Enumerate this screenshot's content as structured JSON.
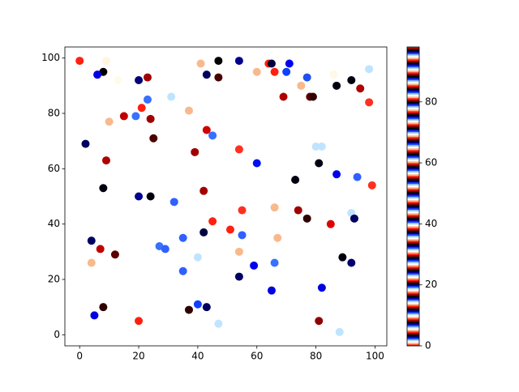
{
  "chart_data": {
    "type": "scatter",
    "xlim": [
      -5,
      104
    ],
    "ylim": [
      -4,
      104
    ],
    "xticks": [
      0,
      20,
      40,
      60,
      80,
      100
    ],
    "yticks": [
      0,
      20,
      40,
      60,
      80,
      100
    ],
    "series": [
      {
        "x": [
          0,
          9,
          8,
          6,
          13,
          20,
          23,
          41,
          43,
          47,
          47,
          54,
          60,
          64,
          65,
          66,
          71,
          70,
          75,
          77,
          78,
          79,
          69,
          87,
          86,
          92,
          95,
          98,
          98,
          31,
          37,
          19,
          21,
          23,
          24,
          15,
          10,
          25,
          2,
          9,
          43,
          45,
          39,
          54,
          60,
          80,
          82,
          81,
          87,
          94,
          99,
          73,
          8,
          20,
          24,
          32,
          42,
          55,
          66,
          74,
          77,
          85,
          92,
          93,
          45,
          51,
          55,
          67,
          42,
          4,
          35,
          27,
          29,
          7,
          12,
          54,
          40,
          89,
          92,
          66,
          4,
          59,
          35,
          54,
          82,
          65,
          40,
          43,
          37,
          8,
          5,
          20,
          81,
          47,
          88
        ],
        "y": [
          99,
          99,
          95,
          94,
          92,
          92,
          93,
          98,
          94,
          99,
          93,
          99,
          95,
          98,
          98,
          95,
          98,
          95,
          90,
          93,
          86,
          86,
          86,
          90,
          94,
          92,
          89,
          96,
          84,
          86,
          81,
          79,
          82,
          85,
          78,
          79,
          77,
          71,
          69,
          63,
          74,
          72,
          66,
          67,
          62,
          68,
          68,
          62,
          58,
          57,
          54,
          56,
          53,
          50,
          50,
          48,
          52,
          45,
          46,
          45,
          42,
          40,
          44,
          42,
          41,
          38,
          36,
          35,
          37,
          34,
          35,
          32,
          31,
          31,
          29,
          30,
          28,
          28,
          26,
          26,
          26,
          25,
          23,
          21,
          17,
          16,
          11,
          10,
          9,
          10,
          7,
          5,
          5,
          4,
          1
        ],
        "colors": [
          "#ff2010",
          "#fff6e0",
          "#050000",
          "#0000e0",
          "#fffbe8",
          "#000078",
          "#a00000",
          "#f9b98c",
          "#000060",
          "#050000",
          "#4a0000",
          "#00008c",
          "#f9b98c",
          "#ff2000",
          "#000040",
          "#ff2010",
          "#0000f0",
          "#1040ff",
          "#f9b98c",
          "#2050f0",
          "#5a0000",
          "#300000",
          "#b00000",
          "#000010",
          "#fff8e6",
          "#000010",
          "#b00000",
          "#c0e4ff",
          "#ff3020",
          "#c0e4ff",
          "#f9b98c",
          "#3870ff",
          "#ff2010",
          "#3870ff",
          "#a00000",
          "#c00000",
          "#f9b98c",
          "#4a0000",
          "#000060",
          "#b00000",
          "#d00000",
          "#3870ff",
          "#a00000",
          "#ff3020",
          "#0010f0",
          "#c0e4ff",
          "#c0e4ff",
          "#000010",
          "#0000f0",
          "#3060ff",
          "#ff3020",
          "#000010",
          "#000010",
          "#000090",
          "#000010",
          "#3060ff",
          "#a00000",
          "#ff3020",
          "#f9b98c",
          "#a00000",
          "#300000",
          "#e00000",
          "#c0e4ff",
          "#000060",
          "#ff2010",
          "#ff2010",
          "#3060ff",
          "#f9b98c",
          "#000040",
          "#000060",
          "#3060ff",
          "#3870ff",
          "#3060ff",
          "#c00000",
          "#5a0000",
          "#f9b98c",
          "#c0e4ff",
          "#000010",
          "#000070",
          "#3870ff",
          "#f9b98c",
          "#0000f0",
          "#3060ff",
          "#000060",
          "#0000e0",
          "#0000e0",
          "#1040ff",
          "#000060",
          "#300000",
          "#300000",
          "#0000e0",
          "#ff2010",
          "#900000",
          "#c0e4ff",
          "#c0e4ff"
        ]
      }
    ],
    "colorbar": {
      "lim": [
        0,
        98
      ],
      "ticks": [
        0,
        20,
        40,
        60,
        80
      ],
      "colors": [
        "#ff2010",
        "#ffb080",
        "#ffffff",
        "#b0d8ff",
        "#2050ff",
        "#0000a0",
        "#000000",
        "#800000"
      ]
    }
  }
}
